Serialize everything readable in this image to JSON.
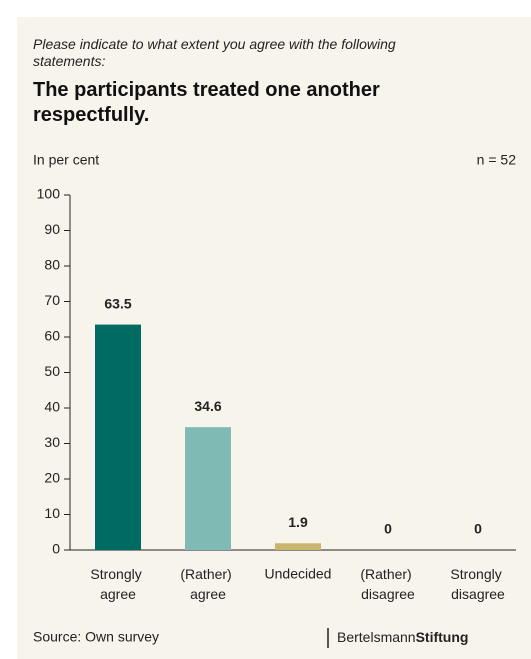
{
  "chart_data": {
    "type": "bar",
    "subtitle": "Please indicate to what extent you agree with the following statements:",
    "title": "The participants treated one another respectfully.",
    "unit_label": "In per cent",
    "sample_size": "n = 52",
    "categories": [
      "Strongly agree",
      "(Rather) agree",
      "Undecided",
      "(Rather) disagree",
      "Strongly disagree"
    ],
    "values": [
      63.5,
      34.6,
      1.9,
      0,
      0
    ],
    "colors": [
      "#006b63",
      "#80bab5",
      "#c9b56b",
      "#eaa9b9",
      "#c5004c"
    ],
    "ylim": [
      0,
      100
    ],
    "yticks": [
      0,
      10,
      20,
      30,
      40,
      50,
      60,
      70,
      80,
      90,
      100
    ],
    "source": "Source: Own survey",
    "logo": {
      "left": "Bertelsmann",
      "right": "Stiftung"
    }
  }
}
